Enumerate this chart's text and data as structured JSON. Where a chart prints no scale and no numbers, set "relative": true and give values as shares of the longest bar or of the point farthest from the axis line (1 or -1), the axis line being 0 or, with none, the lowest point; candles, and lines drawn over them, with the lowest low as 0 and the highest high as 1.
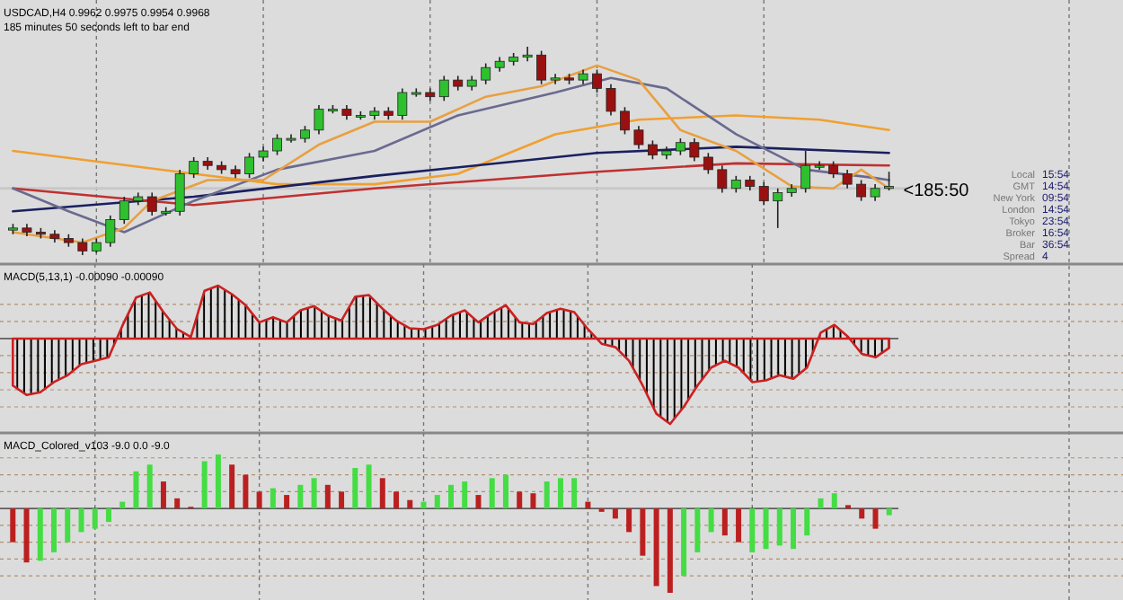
{
  "chart_data": [
    {
      "type": "candlestick",
      "relative": true,
      "title": "USDCAD,H4 0.9962 0.9975 0.9954 0.9968",
      "subtitle": "185 minutes 50 seconds left to bar end",
      "grid": "x",
      "categories": [
        null,
        null,
        null,
        null,
        null,
        null,
        null,
        null,
        null,
        null,
        null,
        null,
        null,
        null,
        null,
        null,
        null,
        null,
        null,
        null,
        null,
        null,
        null,
        null,
        null,
        null,
        null,
        null,
        null,
        null,
        null,
        null,
        null,
        null,
        null,
        null,
        null,
        null,
        null,
        null,
        null,
        null,
        null,
        null,
        null,
        null,
        null,
        null,
        null,
        null,
        null,
        null,
        null,
        null,
        null,
        null,
        null,
        null,
        null,
        null,
        null,
        null,
        null,
        null
      ],
      "ohlc": [
        [
          0.12,
          0.15,
          0.1,
          0.13
        ],
        [
          0.13,
          0.15,
          0.09,
          0.11
        ],
        [
          0.11,
          0.13,
          0.08,
          0.1
        ],
        [
          0.1,
          0.12,
          0.06,
          0.08
        ],
        [
          0.08,
          0.1,
          0.04,
          0.06
        ],
        [
          0.06,
          0.08,
          0,
          0.02
        ],
        [
          0.02,
          0.08,
          0.01,
          0.06
        ],
        [
          0.06,
          0.19,
          0.04,
          0.17
        ],
        [
          0.17,
          0.28,
          0.15,
          0.26
        ],
        [
          0.26,
          0.3,
          0.24,
          0.28
        ],
        [
          0.28,
          0.3,
          0.19,
          0.21
        ],
        [
          0.21,
          0.23,
          0.19,
          0.21
        ],
        [
          0.21,
          0.41,
          0.19,
          0.39
        ],
        [
          0.39,
          0.47,
          0.37,
          0.45
        ],
        [
          0.45,
          0.47,
          0.41,
          0.43
        ],
        [
          0.43,
          0.45,
          0.39,
          0.41
        ],
        [
          0.41,
          0.43,
          0.37,
          0.39
        ],
        [
          0.39,
          0.49,
          0.37,
          0.47
        ],
        [
          0.47,
          0.52,
          0.45,
          0.5
        ],
        [
          0.5,
          0.58,
          0.48,
          0.56
        ],
        [
          0.56,
          0.58,
          0.54,
          0.56
        ],
        [
          0.56,
          0.62,
          0.54,
          0.6
        ],
        [
          0.6,
          0.72,
          0.58,
          0.7
        ],
        [
          0.7,
          0.72,
          0.68,
          0.7
        ],
        [
          0.7,
          0.72,
          0.65,
          0.67
        ],
        [
          0.67,
          0.69,
          0.65,
          0.67
        ],
        [
          0.67,
          0.71,
          0.65,
          0.69
        ],
        [
          0.69,
          0.71,
          0.65,
          0.67
        ],
        [
          0.67,
          0.8,
          0.65,
          0.78
        ],
        [
          0.78,
          0.8,
          0.76,
          0.78
        ],
        [
          0.78,
          0.8,
          0.74,
          0.76
        ],
        [
          0.76,
          0.86,
          0.74,
          0.84
        ],
        [
          0.84,
          0.86,
          0.79,
          0.81
        ],
        [
          0.81,
          0.86,
          0.79,
          0.84
        ],
        [
          0.84,
          0.92,
          0.82,
          0.9
        ],
        [
          0.9,
          0.95,
          0.88,
          0.93
        ],
        [
          0.93,
          0.97,
          0.91,
          0.95
        ],
        [
          0.95,
          1,
          0.93,
          0.96
        ],
        [
          0.96,
          0.98,
          0.82,
          0.84
        ],
        [
          0.84,
          0.87,
          0.82,
          0.85
        ],
        [
          0.85,
          0.87,
          0.82,
          0.84
        ],
        [
          0.84,
          0.89,
          0.82,
          0.87
        ],
        [
          0.87,
          0.89,
          0.78,
          0.8
        ],
        [
          0.8,
          0.82,
          0.67,
          0.69
        ],
        [
          0.69,
          0.71,
          0.58,
          0.6
        ],
        [
          0.6,
          0.62,
          0.51,
          0.53
        ],
        [
          0.53,
          0.55,
          0.46,
          0.48
        ],
        [
          0.48,
          0.52,
          0.46,
          0.5
        ],
        [
          0.5,
          0.56,
          0.48,
          0.54
        ],
        [
          0.54,
          0.56,
          0.45,
          0.47
        ],
        [
          0.47,
          0.49,
          0.39,
          0.41
        ],
        [
          0.41,
          0.43,
          0.3,
          0.32
        ],
        [
          0.32,
          0.38,
          0.3,
          0.36
        ],
        [
          0.36,
          0.38,
          0.31,
          0.33
        ],
        [
          0.33,
          0.35,
          0.24,
          0.26
        ],
        [
          0.26,
          0.32,
          0.13,
          0.3
        ],
        [
          0.3,
          0.34,
          0.28,
          0.32
        ],
        [
          0.32,
          0.5,
          0.3,
          0.43
        ],
        [
          0.43,
          0.45,
          0.41,
          0.43
        ],
        [
          0.43,
          0.45,
          0.37,
          0.39
        ],
        [
          0.39,
          0.41,
          0.32,
          0.34
        ],
        [
          0.34,
          0.36,
          0.26,
          0.28
        ],
        [
          0.28,
          0.34,
          0.26,
          0.32
        ],
        [
          0.32,
          0.4,
          0.31,
          0.33
        ]
      ],
      "series": [
        {
          "type": "line",
          "color": "#f0a030",
          "values": [
            0.5,
            null,
            null,
            null,
            null,
            null,
            null,
            null,
            null,
            null,
            null,
            null,
            null,
            0.39,
            null,
            null,
            null,
            null,
            null,
            0.34,
            null,
            null,
            null,
            null,
            null,
            null,
            0.34,
            null,
            null,
            null,
            null,
            null,
            0.39,
            null,
            null,
            null,
            null,
            null,
            null,
            0.58,
            null,
            null,
            null,
            null,
            null,
            0.65,
            null,
            null,
            null,
            null,
            null,
            null,
            0.67,
            null,
            null,
            null,
            null,
            null,
            0.65,
            null,
            null,
            null,
            null,
            0.6
          ]
        },
        {
          "type": "line",
          "color": "#1a2060",
          "values": [
            0.21,
            null,
            null,
            null,
            null,
            null,
            null,
            null,
            null,
            null,
            null,
            null,
            null,
            0.28,
            null,
            null,
            null,
            null,
            null,
            null,
            null,
            null,
            null,
            null,
            null,
            null,
            0.38,
            null,
            null,
            null,
            null,
            null,
            null,
            null,
            null,
            null,
            null,
            null,
            null,
            null,
            null,
            null,
            0.49,
            null,
            null,
            null,
            null,
            null,
            null,
            null,
            null,
            null,
            0.52,
            null,
            null,
            null,
            null,
            null,
            null,
            null,
            null,
            null,
            null,
            0.49
          ]
        },
        {
          "type": "line",
          "color": "#c03030",
          "values": [
            0.32,
            null,
            null,
            null,
            null,
            null,
            null,
            null,
            null,
            null,
            null,
            null,
            null,
            0.24,
            null,
            null,
            null,
            null,
            null,
            null,
            null,
            null,
            null,
            null,
            null,
            null,
            0.32,
            null,
            null,
            null,
            null,
            null,
            null,
            null,
            null,
            null,
            null,
            null,
            null,
            null,
            null,
            null,
            0.4,
            null,
            null,
            null,
            null,
            null,
            null,
            null,
            null,
            null,
            0.44,
            null,
            null,
            null,
            null,
            null,
            null,
            null,
            null,
            null,
            null,
            0.43
          ]
        },
        {
          "type": "line",
          "color": "#6a6a90",
          "values": [
            0.32,
            null,
            null,
            null,
            0.21,
            null,
            null,
            null,
            0.11,
            null,
            null,
            null,
            null,
            0.26,
            null,
            null,
            null,
            null,
            null,
            0.41,
            null,
            null,
            null,
            null,
            null,
            null,
            0.5,
            null,
            null,
            null,
            null,
            null,
            0.67,
            null,
            null,
            null,
            null,
            null,
            null,
            0.78,
            null,
            null,
            null,
            0.85,
            null,
            null,
            null,
            0.8,
            null,
            null,
            null,
            null,
            0.58,
            null,
            null,
            null,
            null,
            0.41,
            null,
            null,
            null,
            null,
            0.37,
            0.36
          ]
        },
        {
          "type": "line",
          "color": "#e8a040",
          "values": [
            0.11,
            null,
            null,
            null,
            null,
            0.06,
            null,
            null,
            0.13,
            null,
            0.26,
            null,
            null,
            null,
            0.36,
            null,
            null,
            null,
            0.36,
            null,
            null,
            null,
            0.53,
            null,
            null,
            null,
            0.64,
            null,
            null,
            null,
            0.64,
            null,
            null,
            null,
            0.76,
            null,
            null,
            null,
            0.81,
            null,
            null,
            null,
            0.91,
            null,
            null,
            0.84,
            null,
            null,
            0.6,
            null,
            null,
            null,
            0.5,
            null,
            null,
            null,
            0.33,
            null,
            null,
            0.32,
            null,
            0.41,
            null,
            0.32
          ]
        }
      ],
      "ref_lines": [
        {
          "axis": "y",
          "value": 0.32,
          "color": "#c8c8c8"
        }
      ],
      "annotations": [
        "Local",
        "15:54",
        "GMT",
        "14:54",
        "New York",
        "09:54",
        "London",
        "14:54",
        "Tokyo",
        "23:54",
        "Broker",
        "16:54",
        "Bar",
        "36:54",
        "Spread",
        "4",
        "<185:50"
      ]
    },
    {
      "type": "area",
      "relative": true,
      "title": "MACD(5,13,1) -0.00090 -0.00090",
      "grid": "x",
      "ref_lines": [
        {
          "axis": "y",
          "value": 0.4,
          "color": "#b09070",
          "line_style": "dotted"
        },
        {
          "axis": "y",
          "value": 0.2,
          "color": "#b09070",
          "line_style": "dotted"
        },
        {
          "axis": "y",
          "value": -0.2,
          "color": "#b09070",
          "line_style": "dotted"
        },
        {
          "axis": "y",
          "value": -0.4,
          "color": "#b09070",
          "line_style": "dotted"
        },
        {
          "axis": "y",
          "value": -0.6,
          "color": "#b09070",
          "line_style": "dotted"
        },
        {
          "axis": "y",
          "value": -0.8,
          "color": "#b09070",
          "line_style": "dotted"
        }
      ],
      "categories": [
        null,
        null,
        null,
        null,
        null,
        null,
        null,
        null,
        null,
        null,
        null,
        null,
        null,
        null,
        null,
        null,
        null,
        null,
        null,
        null,
        null,
        null,
        null,
        null,
        null,
        null,
        null,
        null,
        null,
        null,
        null,
        null,
        null,
        null,
        null,
        null,
        null,
        null,
        null,
        null,
        null,
        null,
        null,
        null,
        null,
        null,
        null,
        null,
        null,
        null,
        null,
        null,
        null,
        null,
        null,
        null,
        null,
        null,
        null,
        null,
        null,
        null,
        null,
        null,
        null
      ],
      "series": [
        {
          "type": "area",
          "color": "#cc2020",
          "values": [
            -0.55,
            -0.66,
            -0.63,
            -0.51,
            -0.43,
            -0.3,
            -0.26,
            -0.22,
            0.15,
            0.48,
            0.54,
            0.31,
            0.11,
            0.02,
            0.56,
            0.62,
            0.52,
            0.39,
            0.19,
            0.25,
            0.19,
            0.33,
            0.38,
            0.27,
            0.21,
            0.49,
            0.51,
            0.35,
            0.21,
            0.12,
            0.11,
            0.16,
            0.27,
            0.33,
            0.19,
            0.3,
            0.39,
            0.19,
            0.17,
            0.3,
            0.35,
            0.31,
            0.11,
            -0.06,
            -0.1,
            -0.26,
            -0.55,
            -0.88,
            -1,
            -0.8,
            -0.55,
            -0.34,
            -0.26,
            -0.34,
            -0.51,
            -0.49,
            -0.43,
            -0.47,
            -0.34,
            0.07,
            0.16,
            0.02,
            -0.18,
            -0.22,
            -0.11
          ]
        }
      ]
    },
    {
      "type": "bar",
      "relative": true,
      "title": "MACD_Colored_v103 -9.0 0.0 -9.0",
      "grid": "x",
      "ref_lines": [
        {
          "axis": "y",
          "value": 0.6,
          "color": "#b09070",
          "line_style": "dotted"
        },
        {
          "axis": "y",
          "value": 0.4,
          "color": "#b09070",
          "line_style": "dotted"
        },
        {
          "axis": "y",
          "value": 0.2,
          "color": "#b09070",
          "line_style": "dotted"
        },
        {
          "axis": "y",
          "value": -0.2,
          "color": "#b09070",
          "line_style": "dotted"
        },
        {
          "axis": "y",
          "value": -0.4,
          "color": "#b09070",
          "line_style": "dotted"
        },
        {
          "axis": "y",
          "value": -0.6,
          "color": "#b09070",
          "line_style": "dotted"
        },
        {
          "axis": "y",
          "value": -0.8,
          "color": "#b09070",
          "line_style": "dotted"
        }
      ],
      "categories": [
        null,
        null,
        null,
        null,
        null,
        null,
        null,
        null,
        null,
        null,
        null,
        null,
        null,
        null,
        null,
        null,
        null,
        null,
        null,
        null,
        null,
        null,
        null,
        null,
        null,
        null,
        null,
        null,
        null,
        null,
        null,
        null,
        null,
        null,
        null,
        null,
        null,
        null,
        null,
        null,
        null,
        null,
        null,
        null,
        null,
        null,
        null,
        null,
        null,
        null,
        null,
        null,
        null,
        null,
        null,
        null,
        null,
        null,
        null,
        null,
        null,
        null,
        null,
        null,
        null
      ],
      "values": [
        -0.4,
        -0.64,
        -0.62,
        -0.52,
        -0.4,
        -0.28,
        -0.24,
        -0.16,
        0.08,
        0.44,
        0.52,
        0.32,
        0.12,
        0.02,
        0.56,
        0.64,
        0.52,
        0.4,
        0.2,
        0.24,
        0.16,
        0.28,
        0.36,
        0.28,
        0.2,
        0.48,
        0.52,
        0.36,
        0.2,
        0.1,
        0.08,
        0.16,
        0.28,
        0.32,
        0.16,
        0.36,
        0.4,
        0.2,
        0.18,
        0.32,
        0.36,
        0.36,
        0.08,
        -0.04,
        -0.12,
        -0.28,
        -0.56,
        -0.92,
        -1,
        -0.8,
        -0.52,
        -0.28,
        -0.32,
        -0.4,
        -0.52,
        -0.48,
        -0.44,
        -0.48,
        -0.32,
        0.12,
        0.18,
        0.04,
        -0.12,
        -0.24,
        -0.08
      ],
      "colors": [
        "#bb2020",
        "#bb2020",
        "#44dd44",
        "#44dd44",
        "#44dd44",
        "#44dd44",
        "#44dd44",
        "#44dd44",
        "#44dd44",
        "#44dd44",
        "#44dd44",
        "#bb2020",
        "#bb2020",
        "#bb2020",
        "#44dd44",
        "#44dd44",
        "#bb2020",
        "#bb2020",
        "#bb2020",
        "#44dd44",
        "#bb2020",
        "#44dd44",
        "#44dd44",
        "#bb2020",
        "#bb2020",
        "#44dd44",
        "#44dd44",
        "#bb2020",
        "#bb2020",
        "#bb2020",
        "#44dd44",
        "#44dd44",
        "#44dd44",
        "#44dd44",
        "#bb2020",
        "#44dd44",
        "#44dd44",
        "#bb2020",
        "#bb2020",
        "#44dd44",
        "#44dd44",
        "#44dd44",
        "#bb2020",
        "#bb2020",
        "#bb2020",
        "#bb2020",
        "#bb2020",
        "#bb2020",
        "#bb2020",
        "#44dd44",
        "#44dd44",
        "#44dd44",
        "#bb2020",
        "#bb2020",
        "#44dd44",
        "#44dd44",
        "#44dd44",
        "#44dd44",
        "#44dd44",
        "#44dd44",
        "#44dd44",
        "#bb2020",
        "#bb2020",
        "#bb2020",
        "#44dd44"
      ]
    }
  ]
}
